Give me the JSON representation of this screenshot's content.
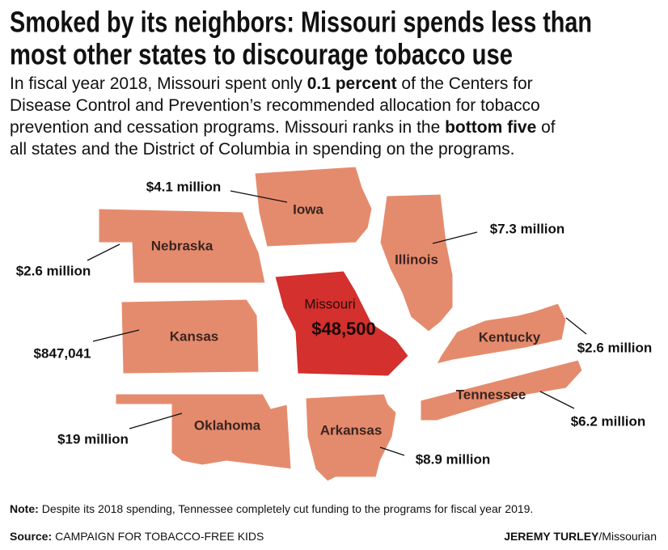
{
  "header": {
    "title": [
      "Smoked by its neighbors: Missouri spends less than",
      "most other states to discourage tobacco use"
    ],
    "subtitle": [
      [
        {
          "text": "In fiscal year 2018, Missouri spent only ",
          "bold": false
        },
        {
          "text": "0.1 percent",
          "bold": true
        },
        {
          "text": " of the Centers for",
          "bold": false
        }
      ],
      [
        {
          "text": "Disease Control and Prevention’s recommended allocation for tobacco",
          "bold": false
        }
      ],
      [
        {
          "text": "prevention and cessation programs. Missouri ranks in the ",
          "bold": false
        },
        {
          "text": "bottom five",
          "bold": true
        },
        {
          "text": " of",
          "bold": false
        }
      ],
      [
        {
          "text": "all states and the District of Columbia in spending on the programs.",
          "bold": false
        }
      ]
    ]
  },
  "map": {
    "states": [
      {
        "name": "Nebraska",
        "spending": "$2.6 million"
      },
      {
        "name": "Iowa",
        "spending": "$4.1 million"
      },
      {
        "name": "Illinois",
        "spending": "$7.3 million"
      },
      {
        "name": "Kansas",
        "spending": "$847,041"
      },
      {
        "name": "Missouri",
        "spending": "$48,500"
      },
      {
        "name": "Kentucky",
        "spending": "$2.6 million"
      },
      {
        "name": "Tennessee",
        "spending": "$6.2 million"
      },
      {
        "name": "Oklahoma",
        "spending": "$19 million"
      },
      {
        "name": "Arkansas",
        "spending": "$8.9 million"
      }
    ],
    "highlight_color": "#d3302e",
    "color": "#e58b6d"
  },
  "footer": {
    "note_label": "Note:",
    "note": "Despite its 2018 spending, Tennessee completely cut funding to the programs for fiscal year 2019.",
    "source_label": "Source:",
    "source": "CAMPAIGN FOR TOBACCO-FREE KIDS",
    "credit_name": "JEREMY TURLEY",
    "credit_org": "/Missourian"
  }
}
